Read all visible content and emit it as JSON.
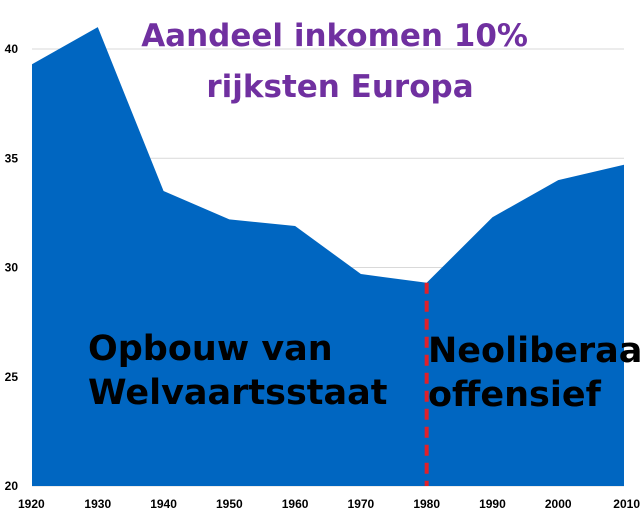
{
  "chart_data": {
    "type": "area",
    "title_lines": [
      "Aandeel inkomen 10%",
      "rijksten Europa"
    ],
    "x": [
      1920,
      1930,
      1940,
      1950,
      1960,
      1970,
      1980,
      1990,
      2000,
      2010
    ],
    "values": [
      39.3,
      41.0,
      33.5,
      32.2,
      31.9,
      29.7,
      29.3,
      32.3,
      34.0,
      34.7
    ],
    "xlim": [
      1920,
      2010
    ],
    "ylim": [
      20,
      40
    ],
    "yticks": [
      20,
      25,
      30,
      35,
      40
    ],
    "grid": true,
    "marker_x": 1980,
    "annotations": [
      {
        "lines": [
          "Opbouw van",
          "Welvaartsstaat"
        ]
      },
      {
        "lines": [
          "Neoliberaal",
          "offensief"
        ]
      }
    ]
  },
  "colors": {
    "area": "#0066c1",
    "title": "#7030a0",
    "divider": "#e0202a",
    "grid": "#d9d9d9"
  }
}
